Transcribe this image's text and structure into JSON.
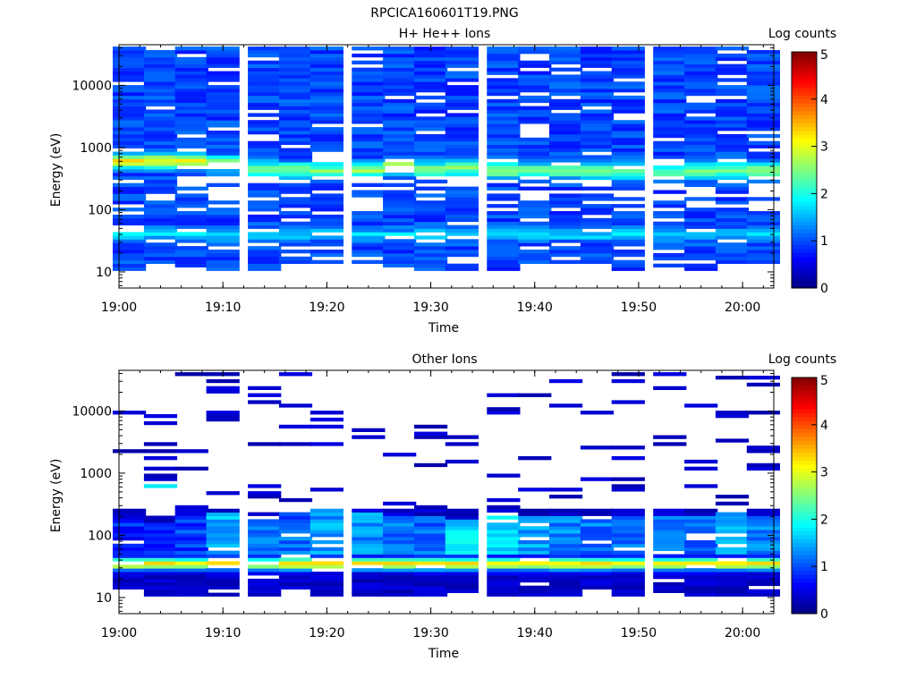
{
  "figure_title": "RPCICA160601T19.PNG",
  "colorscale": [
    "#000080",
    "#0000ff",
    "#0080ff",
    "#00ffff",
    "#80ff80",
    "#ffff00",
    "#ff8000",
    "#ff0000",
    "#800000"
  ],
  "chart_data": [
    {
      "type": "heatmap",
      "title": "H+ He++ Ions",
      "xlabel": "Time",
      "ylabel": "Energy (eV)",
      "colorbar_label": "Log counts",
      "colorbar_ticks": [
        "0",
        "1",
        "2",
        "3",
        "4",
        "5"
      ],
      "clim": [
        0,
        5
      ],
      "x_ticks": [
        "19:00",
        "19:10",
        "19:20",
        "19:30",
        "19:40",
        "19:50",
        "20:00"
      ],
      "xlim": [
        "19:00",
        "20:03"
      ],
      "y_scale": "log",
      "ylim": [
        5.5,
        45000
      ],
      "y_ticks": [
        "10",
        "100",
        "1000",
        "10000"
      ],
      "x_bins": [
        "19:01",
        "19:04",
        "19:07",
        "19:10",
        "19:14",
        "19:17",
        "19:20",
        "19:24",
        "19:27",
        "19:30",
        "19:33",
        "19:37",
        "19:40",
        "19:43",
        "19:46",
        "19:49",
        "19:53",
        "19:56",
        "19:59",
        "20:02"
      ],
      "profile": {
        "low_cutoff_eV": [
          10,
          14,
          10,
          7,
          10,
          14,
          14,
          14,
          10,
          7,
          7,
          7,
          14,
          14,
          14,
          10,
          7,
          10,
          14,
          14
        ],
        "peak_energy_eV": [
          600,
          600,
          600,
          560,
          450,
          450,
          430,
          430,
          520,
          450,
          480,
          430,
          430,
          430,
          420,
          420,
          420,
          430,
          430,
          430
        ],
        "peak_log_counts": [
          2.9,
          2.9,
          2.8,
          2.8,
          2.3,
          2.3,
          2.2,
          2.3,
          2.6,
          2.4,
          2.5,
          2.4,
          2.3,
          2.3,
          2.3,
          2.3,
          2.2,
          2.3,
          2.3,
          2.3
        ],
        "secondary_peak_eV": 40,
        "secondary_log_counts": 1.4,
        "background_log_counts": 0.7
      }
    },
    {
      "type": "heatmap",
      "title": "Other Ions",
      "xlabel": "Time",
      "ylabel": "Energy (eV)",
      "colorbar_label": "Log counts",
      "colorbar_ticks": [
        "0",
        "1",
        "2",
        "3",
        "4",
        "5"
      ],
      "clim": [
        0,
        5
      ],
      "x_ticks": [
        "19:00",
        "19:10",
        "19:20",
        "19:30",
        "19:40",
        "19:50",
        "20:00"
      ],
      "xlim": [
        "19:00",
        "20:03"
      ],
      "y_scale": "log",
      "ylim": [
        5.5,
        45000
      ],
      "y_ticks": [
        "10",
        "100",
        "1000",
        "10000"
      ],
      "x_bins": [
        "19:01",
        "19:04",
        "19:07",
        "19:10",
        "19:14",
        "19:17",
        "19:20",
        "19:24",
        "19:27",
        "19:30",
        "19:33",
        "19:37",
        "19:40",
        "19:43",
        "19:46",
        "19:49",
        "19:53",
        "19:56",
        "19:59",
        "20:02"
      ],
      "profile": {
        "low_cutoff_eV": [
          14,
          7,
          7,
          7,
          7,
          14,
          7,
          7,
          7,
          7,
          7,
          7,
          7,
          7,
          14,
          7,
          7,
          7,
          7,
          7
        ],
        "peak_energy_eV": [
          35,
          35,
          35,
          35,
          35,
          35,
          35,
          35,
          35,
          35,
          35,
          35,
          35,
          35,
          35,
          35,
          35,
          35,
          35,
          35
        ],
        "peak_log_counts": [
          3.3,
          3.2,
          3.2,
          3.3,
          3.2,
          3.3,
          3.3,
          3.2,
          3.2,
          3.3,
          3.2,
          3.2,
          3.2,
          3.2,
          3.3,
          3.2,
          3.3,
          3.2,
          3.3,
          3.2
        ],
        "mid_band_top_eV": [
          180,
          160,
          200,
          250,
          200,
          250,
          280,
          250,
          220,
          220,
          180,
          200,
          220,
          200,
          200,
          220,
          200,
          220,
          240,
          200
        ],
        "mid_band_log_counts": [
          0.9,
          0.8,
          1.0,
          1.6,
          1.2,
          1.2,
          1.5,
          1.4,
          1.3,
          1.2,
          1.8,
          1.7,
          1.5,
          1.4,
          1.3,
          1.3,
          1.3,
          1.3,
          1.7,
          1.4
        ],
        "upper_band_eV": [
          650,
          650,
          600,
          600
        ],
        "upper_band_log_counts": 1.9,
        "background_log_counts": 0.2
      }
    }
  ]
}
